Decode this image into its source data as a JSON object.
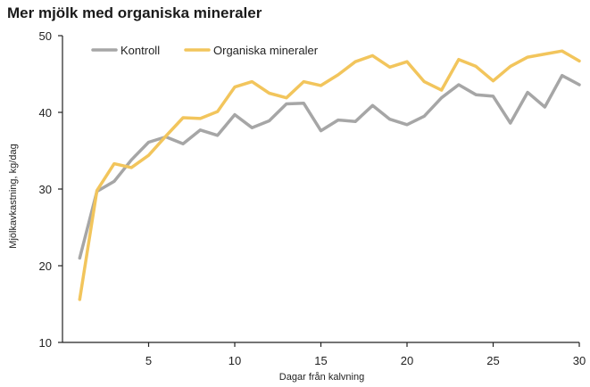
{
  "chart_data": {
    "type": "line",
    "title": "Mer mjölk med organiska mineraler",
    "xlabel": "Dagar från kalvning",
    "ylabel": "Mjölkavkastning, kg/dag",
    "xlim": [
      0,
      30
    ],
    "ylim": [
      10,
      50
    ],
    "xticks": [
      5,
      10,
      15,
      20,
      25,
      30
    ],
    "yticks": [
      10,
      20,
      30,
      40,
      50
    ],
    "grid": false,
    "legend_position": "top-left",
    "x": [
      1,
      2,
      3,
      4,
      5,
      6,
      7,
      8,
      9,
      10,
      11,
      12,
      13,
      14,
      15,
      16,
      17,
      18,
      19,
      20,
      21,
      22,
      23,
      24,
      25,
      26,
      27,
      28,
      29,
      30
    ],
    "series": [
      {
        "name": "Kontroll",
        "color": "#a6a6a6",
        "values": [
          21.0,
          29.7,
          31.0,
          33.8,
          36.1,
          36.8,
          35.9,
          37.7,
          37.0,
          39.7,
          38.0,
          38.9,
          41.1,
          41.2,
          37.6,
          39.0,
          38.8,
          40.9,
          39.1,
          38.4,
          39.5,
          41.9,
          43.6,
          42.3,
          42.1,
          38.6,
          42.6,
          40.7,
          44.8,
          43.6
        ]
      },
      {
        "name": "Organiska mineraler",
        "color": "#f2c55c",
        "values": [
          15.6,
          29.8,
          33.3,
          32.8,
          34.4,
          36.9,
          39.3,
          39.2,
          40.1,
          43.3,
          44.0,
          42.5,
          41.9,
          44.0,
          43.5,
          44.9,
          46.6,
          47.4,
          45.9,
          46.6,
          44.0,
          42.9,
          46.9,
          46.0,
          44.1,
          46.0,
          47.2,
          47.6,
          48.0,
          46.7
        ]
      }
    ]
  }
}
